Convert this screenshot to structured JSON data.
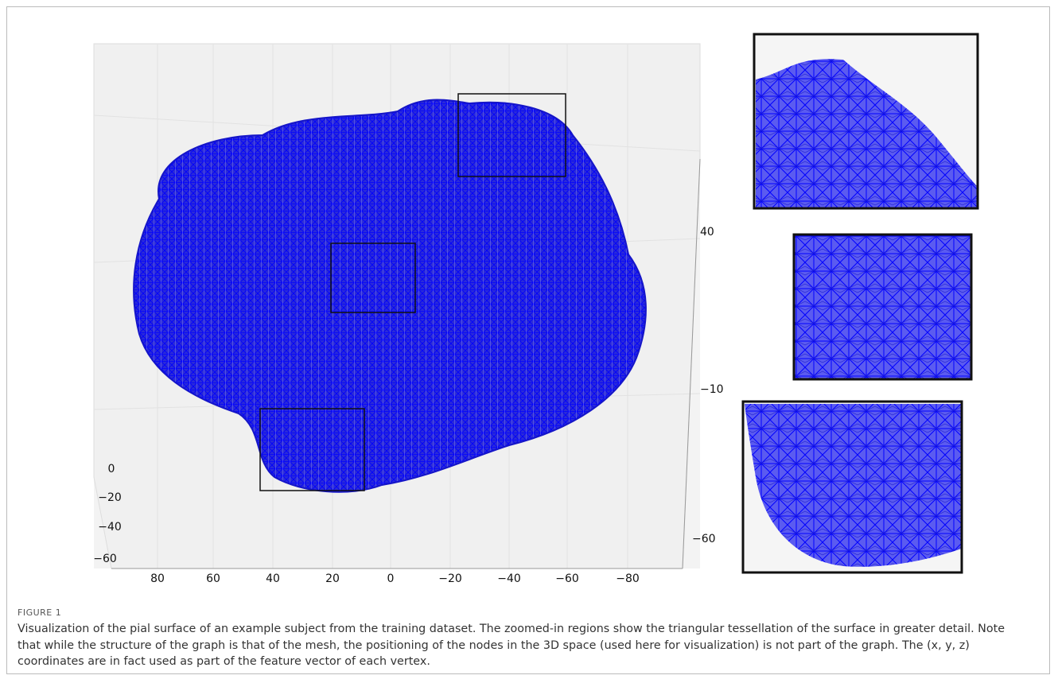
{
  "figure": {
    "x_axis_ticks": [
      "80",
      "60",
      "40",
      "20",
      "0",
      "−20",
      "−40",
      "−60",
      "−80"
    ],
    "y_axis_ticks": [
      "0",
      "−20",
      "−40",
      "−60"
    ],
    "z_axis_ticks": [
      "40",
      "−10",
      "−60"
    ],
    "label": "FIGURE 1",
    "caption": "Visualization of the pial surface of an example subject from the training dataset. The zoomed-in regions show the triangular tessellation of the surface in greater detail. Note that while the structure of the graph is that of the mesh, the positioning of the nodes in the 3D space (used here for visualization) is not part of the graph. The (x, y, z) coordinates are in fact used as part of the feature vector of each vertex."
  }
}
